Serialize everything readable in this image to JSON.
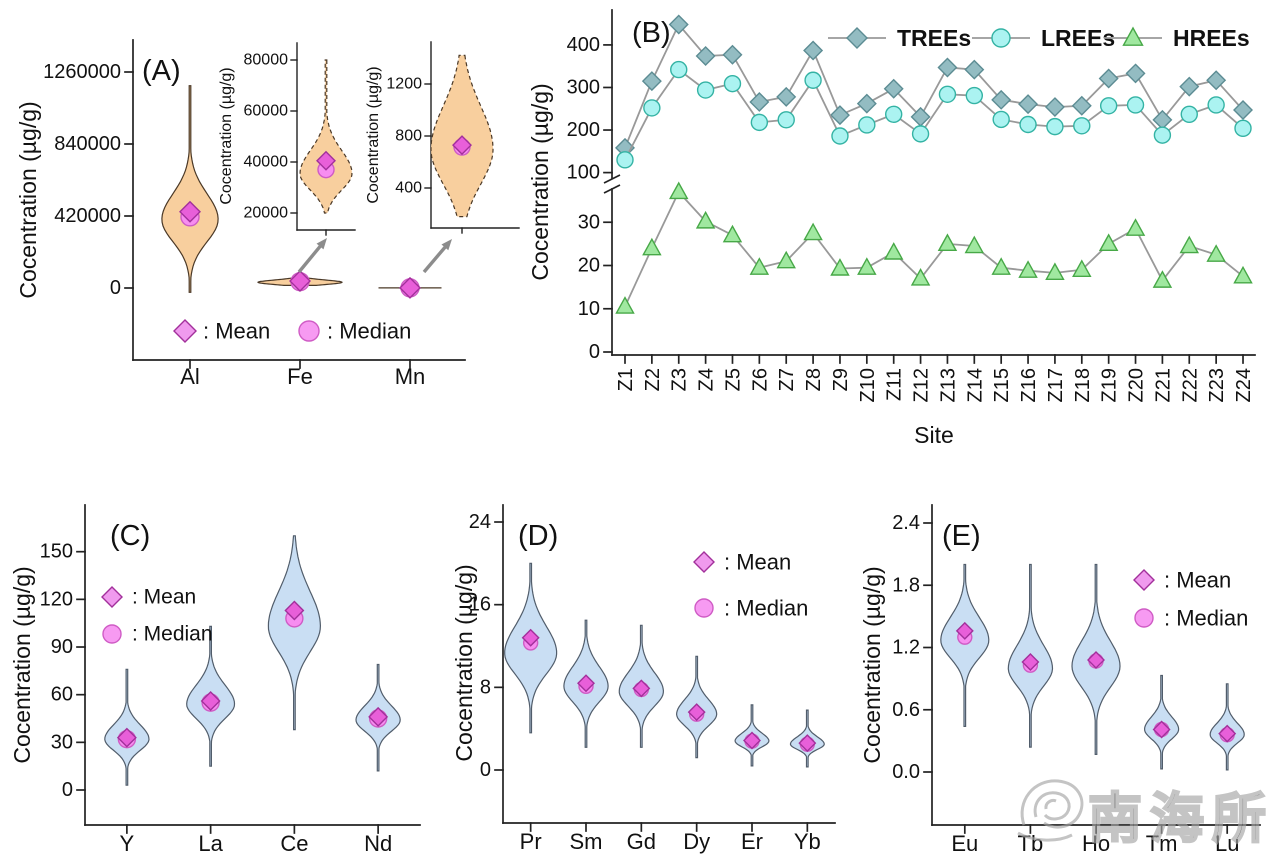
{
  "watermark": {
    "text": "南海所"
  },
  "legend": {
    "mean_label": ": Mean",
    "median_label": ": Median"
  },
  "colors": {
    "axis": "#222222",
    "mean_fill": "#e85fd9",
    "mean_stroke": "#a2309b",
    "median_fill": "#f78df0",
    "median_stroke": "#cf5cc5",
    "line_gray": "#999999",
    "arrow": "#8c8c8c",
    "watermark_gray": "#a5a5a5"
  },
  "chart_data": [
    {
      "panel": "A",
      "type": "violin",
      "title": "(A)",
      "ylabel": "Cocentration (µg/g)",
      "yticks": [
        0,
        420000,
        840000,
        1260000
      ],
      "ytick_labels": [
        "0",
        "420000",
        "840000",
        "1260000"
      ],
      "fill": "#f8cf9e",
      "stroke": "#4a3826",
      "categories": [
        "Al",
        "Fe",
        "Mn"
      ],
      "violins": [
        {
          "label": "Al",
          "min": -25000,
          "max": 1180000,
          "peak": 400000,
          "sigma_low": 130000,
          "sigma_high": 150000,
          "rel_width": 0.67,
          "mean": 445000,
          "median": 415000
        },
        {
          "label": "Fe",
          "min": 15000,
          "max": 80000,
          "peak": 33000,
          "sigma_low": 13000,
          "sigma_high": 14000,
          "rel_width": 1.0,
          "mean": 40500,
          "median": 37000
        },
        {
          "label": "Mn",
          "min": 170,
          "max": 1400,
          "peak": 700,
          "sigma_low": 280,
          "sigma_high": 320,
          "rel_width": 0.75,
          "mean": 730,
          "median": 715
        }
      ],
      "insets": [
        {
          "for": "Fe",
          "ylabel": "Cocentration (µg/g)",
          "yticks": [
            20000,
            40000,
            60000,
            80000
          ],
          "ytick_labels": [
            "20000",
            "40000",
            "60000",
            "80000"
          ],
          "violin": {
            "label": "Fe",
            "min": 20000,
            "max": 80000,
            "peak": 35500,
            "sigma_low": 6500,
            "sigma_high": 9000,
            "rel_width": 1.0,
            "mean": 40500,
            "median": 37000
          }
        },
        {
          "for": "Mn",
          "ylabel": "Cocentration (µg/g)",
          "yticks": [
            400,
            800,
            1200
          ],
          "ytick_labels": [
            "400",
            "800",
            "1200"
          ],
          "violin": {
            "label": "Mn",
            "min": 180,
            "max": 1420,
            "peak": 700,
            "sigma_low": 270,
            "sigma_high": 330,
            "rel_width": 1.0,
            "mean": 730,
            "median": 715
          }
        }
      ]
    },
    {
      "panel": "B",
      "type": "line",
      "title": "(B)",
      "ylabel": "Cocentration (µg/g)",
      "xlabel": "Site",
      "sites": [
        "Z1",
        "Z2",
        "Z3",
        "Z4",
        "Z5",
        "Z6",
        "Z7",
        "Z8",
        "Z9",
        "Z10",
        "Z11",
        "Z12",
        "Z13",
        "Z14",
        "Z15",
        "Z16",
        "Z17",
        "Z18",
        "Z19",
        "Z20",
        "Z21",
        "Z22",
        "Z23",
        "Z24"
      ],
      "axis_break": true,
      "yticks_upper": [
        100,
        200,
        300,
        400
      ],
      "ytick_upper_labels": [
        "100",
        "200",
        "300",
        "400"
      ],
      "yticks_lower": [
        0,
        10,
        20,
        30
      ],
      "ytick_lower_labels": [
        "0",
        "10",
        "20",
        "30"
      ],
      "line_color": "#999999",
      "series": [
        {
          "name": "TREEs",
          "marker": "diamond",
          "fill": "#93bcc2",
          "stroke": "#5c8c93",
          "values": [
            158,
            315,
            448,
            374,
            377,
            266,
            278,
            387,
            235,
            262,
            297,
            231,
            347,
            342,
            271,
            261,
            254,
            257,
            321,
            333,
            224,
            302,
            317,
            247
          ]
        },
        {
          "name": "LREEs",
          "marker": "circle",
          "fill": "#abf3f1",
          "stroke": "#34b3a4",
          "values": [
            130,
            252,
            342,
            294,
            309,
            218,
            224,
            317,
            186,
            212,
            237,
            191,
            284,
            281,
            225,
            213,
            208,
            210,
            257,
            259,
            188,
            237,
            259,
            204
          ]
        },
        {
          "name": "HREEs",
          "marker": "triangle",
          "fill": "#a0e8a0",
          "stroke": "#47a847",
          "values": [
            10.5,
            24,
            37,
            30.2,
            27,
            19.5,
            21,
            27.5,
            19.3,
            19.5,
            23,
            17,
            25,
            24.5,
            19.5,
            18.8,
            18.3,
            19,
            25,
            28.5,
            16.5,
            24.5,
            22.5,
            17.5
          ]
        }
      ]
    },
    {
      "panel": "C",
      "type": "violin",
      "title": "(C)",
      "ylabel": "Cocentration (µg/g)",
      "yticks": [
        0,
        30,
        60,
        90,
        120,
        150
      ],
      "ytick_labels": [
        "0",
        "30",
        "60",
        "90",
        "120",
        "150"
      ],
      "fill": "#c9def3",
      "stroke": "#515d6b",
      "categories": [
        "Y",
        "La",
        "Ce",
        "Nd"
      ],
      "violins": [
        {
          "label": "Y",
          "min": 3,
          "max": 76,
          "peak": 32,
          "sigma_low": 7,
          "sigma_high": 9,
          "rel_width": 0.85,
          "mean": 33,
          "median": 32
        },
        {
          "label": "La",
          "min": 15,
          "max": 103,
          "peak": 54,
          "sigma_low": 9,
          "sigma_high": 12,
          "rel_width": 0.92,
          "mean": 56,
          "median": 55
        },
        {
          "label": "Ce",
          "min": 38,
          "max": 160,
          "peak": 103,
          "sigma_low": 16,
          "sigma_high": 22,
          "rel_width": 1.0,
          "mean": 113,
          "median": 108
        },
        {
          "label": "Nd",
          "min": 12,
          "max": 79,
          "peak": 44,
          "sigma_low": 7,
          "sigma_high": 9,
          "rel_width": 0.85,
          "mean": 46,
          "median": 45
        }
      ]
    },
    {
      "panel": "D",
      "type": "violin",
      "title": "(D)",
      "ylabel": "Cocentration (µg/g)",
      "yticks": [
        0,
        8,
        16,
        24
      ],
      "ytick_labels": [
        "0",
        "8",
        "16",
        "24"
      ],
      "fill": "#c9def3",
      "stroke": "#515d6b",
      "categories": [
        "Pr",
        "Sm",
        "Gd",
        "Dy",
        "Er",
        "Yb"
      ],
      "violins": [
        {
          "label": "Pr",
          "min": 3.6,
          "max": 20,
          "peak": 11.3,
          "sigma_low": 2.0,
          "sigma_high": 2.6,
          "rel_width": 1.0,
          "mean": 12.8,
          "median": 12.3
        },
        {
          "label": "Sm",
          "min": 2.2,
          "max": 14.5,
          "peak": 8.1,
          "sigma_low": 1.5,
          "sigma_high": 1.9,
          "rel_width": 0.85,
          "mean": 8.4,
          "median": 8.1
        },
        {
          "label": "Gd",
          "min": 2.2,
          "max": 14,
          "peak": 7.6,
          "sigma_low": 1.4,
          "sigma_high": 1.8,
          "rel_width": 0.85,
          "mean": 7.9,
          "median": 7.8
        },
        {
          "label": "Dy",
          "min": 1.2,
          "max": 11,
          "peak": 5.4,
          "sigma_low": 1.1,
          "sigma_high": 1.4,
          "rel_width": 0.77,
          "mean": 5.6,
          "median": 5.4
        },
        {
          "label": "Er",
          "min": 0.4,
          "max": 6.3,
          "peak": 2.8,
          "sigma_low": 0.55,
          "sigma_high": 0.75,
          "rel_width": 0.65,
          "mean": 2.85,
          "median": 2.8
        },
        {
          "label": "Yb",
          "min": 0.3,
          "max": 5.8,
          "peak": 2.5,
          "sigma_low": 0.5,
          "sigma_high": 0.7,
          "rel_width": 0.65,
          "mean": 2.6,
          "median": 2.5
        }
      ]
    },
    {
      "panel": "E",
      "type": "violin",
      "title": "(E)",
      "ylabel": "Cocentration (µg/g)",
      "yticks": [
        0.0,
        0.6,
        1.2,
        1.8,
        2.4
      ],
      "ytick_labels": [
        "0.0",
        "0.6",
        "1.2",
        "1.8",
        "2.4"
      ],
      "fill": "#c9def3",
      "stroke": "#515d6b",
      "categories": [
        "Eu",
        "Tb",
        "Ho",
        "Tm",
        "Lu"
      ],
      "violins": [
        {
          "label": "Eu",
          "min": 0.44,
          "max": 2.0,
          "peak": 1.27,
          "sigma_low": 0.17,
          "sigma_high": 0.22,
          "rel_width": 1.0,
          "mean": 1.36,
          "median": 1.3
        },
        {
          "label": "Tb",
          "min": 0.24,
          "max": 2.0,
          "peak": 1.0,
          "sigma_low": 0.17,
          "sigma_high": 0.22,
          "rel_width": 0.92,
          "mean": 1.06,
          "median": 1.03
        },
        {
          "label": "Ho",
          "min": 0.17,
          "max": 2.0,
          "peak": 1.02,
          "sigma_low": 0.2,
          "sigma_high": 0.24,
          "rel_width": 1.0,
          "mean": 1.08,
          "median": 1.07
        },
        {
          "label": "Tm",
          "min": 0.03,
          "max": 0.93,
          "peak": 0.41,
          "sigma_low": 0.09,
          "sigma_high": 0.12,
          "rel_width": 0.71,
          "mean": 0.41,
          "median": 0.41
        },
        {
          "label": "Lu",
          "min": 0.02,
          "max": 0.85,
          "peak": 0.36,
          "sigma_low": 0.08,
          "sigma_high": 0.11,
          "rel_width": 0.71,
          "mean": 0.37,
          "median": 0.36
        }
      ]
    }
  ]
}
